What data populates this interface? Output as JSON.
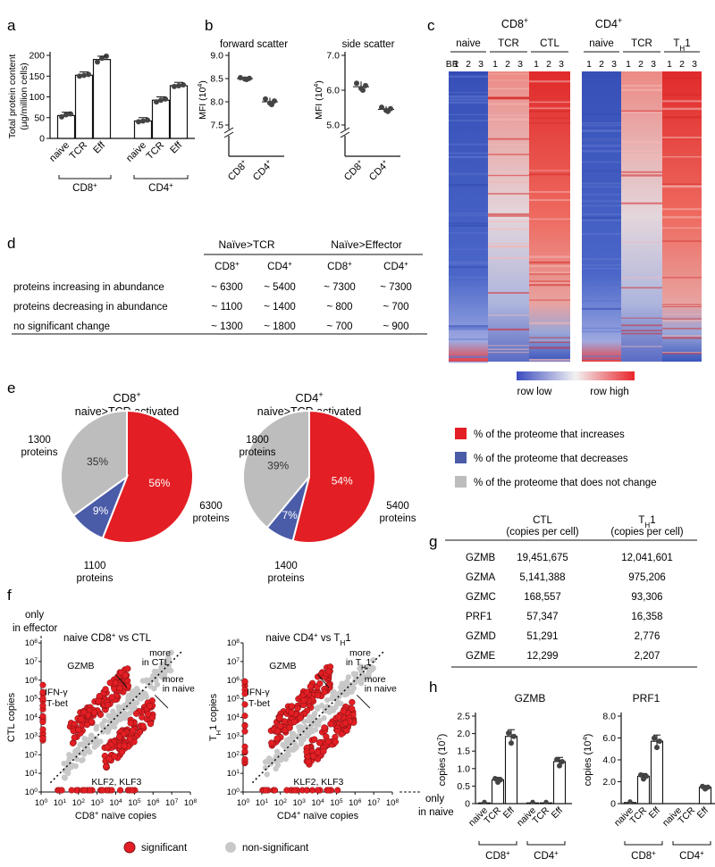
{
  "colors": {
    "red": "#e31e24",
    "blue": "#4a5ba8",
    "grey": "#bdbdbd",
    "point_grey": "#c8c8c8"
  },
  "panels": {
    "a": {
      "label": "a",
      "ylabel1": "Total protein content",
      "ylabel2": "(µg/million cells)",
      "ticks": [
        "0",
        "50",
        "100",
        "150",
        "200"
      ],
      "groups": [
        "CD8",
        "CD4"
      ],
      "sup": "+",
      "categories": [
        "naive",
        "TCR",
        "Eff"
      ]
    },
    "b": {
      "label": "b",
      "title1": "forward scatter",
      "title2": "side scatter",
      "ylabel": "MFI (10",
      "ylabel_sup": "4",
      "ylabel_close": ")",
      "ticks1": [
        "7.5",
        "8.0",
        "8.5",
        "9.0"
      ],
      "ticks2": [
        "5.0",
        "6.0",
        "7.0"
      ],
      "cats": [
        "CD8",
        "CD4"
      ],
      "sup": "+"
    },
    "c": {
      "label": "c",
      "head1": "CD8",
      "head2": "CD4",
      "sup": "+",
      "br": "BR",
      "groups1": [
        "naive",
        "TCR",
        "CTL"
      ],
      "groups2": [
        "naive",
        "TCR",
        "T"
      ],
      "th_sub": "H",
      "th_tail": "1",
      "reps": [
        "1",
        "2",
        "3"
      ],
      "legend_low": "row low",
      "legend_high": "row high"
    },
    "d": {
      "label": "d",
      "group_headers": [
        "Naïve>TCR",
        "Naïve>Effector"
      ],
      "col_headers": [
        "CD8",
        "CD4",
        "CD8",
        "CD4"
      ],
      "sup": "+",
      "rows": [
        {
          "label": "proteins increasing in abundance",
          "values": [
            "~ 6300",
            "~ 5400",
            "~ 7300",
            "~ 7300"
          ]
        },
        {
          "label": "proteins decreasing in abundance",
          "values": [
            "~ 1100",
            "~ 1400",
            "~ 800",
            "~ 700"
          ]
        },
        {
          "label": "no significant change",
          "values": [
            "~ 1300",
            "~ 1800",
            "~ 700",
            "~ 900"
          ]
        }
      ]
    },
    "e": {
      "label": "e",
      "pies": [
        {
          "title1": "CD8",
          "title2": "naive>TCR activated",
          "inc": 56,
          "dec": 9,
          "same": 35,
          "inc_label": "56%",
          "dec_label": "9%",
          "same_label": "35%",
          "n_inc": "6300",
          "n_dec": "1100",
          "n_same": "1300",
          "unit": "proteins"
        },
        {
          "title1": "CD4",
          "title2": "naive>TCR activated",
          "inc": 54,
          "dec": 7,
          "same": 39,
          "inc_label": "54%",
          "dec_label": "7%",
          "same_label": "39%",
          "n_inc": "5400",
          "n_dec": "1400",
          "n_same": "1800",
          "unit": "proteins"
        }
      ],
      "sup": "+",
      "legend": [
        "% of the proteome that increases",
        "% of the proteome that decreases",
        "% of the proteome that does not change"
      ]
    },
    "f": {
      "label": "f",
      "only_effector": "only",
      "only_effector2": "in effector",
      "only_naive": "only",
      "only_naive2": "in naive",
      "title1a": "naive CD8",
      "title1b": " vs CTL",
      "title2a": "naive CD4",
      "title2b": " vs T",
      "title2c": "1",
      "sup": "+",
      "sub": "H",
      "more_ctl1": "more",
      "more_ctl2": "in CTL",
      "more_th1": "more",
      "more_th2": "in T",
      "more_th3": "1",
      "more_naive1": "more",
      "more_naive2": "in naive",
      "gzmb": "GZMB",
      "ifng": "IFN-γ",
      "tbet": "T-bet",
      "klf": "KLF2, KLF3",
      "ylabel1": "CTL copies",
      "ylabel2a": "T",
      "ylabel2b": "1 copies",
      "xlabel1a": "CD8",
      "xlabel1b": " naïve copies",
      "xlabel2a": "CD4",
      "xlabel2b": " naïve copies",
      "exps": [
        "0",
        "1",
        "2",
        "3",
        "4",
        "5",
        "6",
        "7",
        "8"
      ],
      "base": "10",
      "legend_sig": "significant",
      "legend_non": "non-significant"
    },
    "g": {
      "label": "g",
      "col1a": "CTL",
      "col1b": "(copies per cell)",
      "col2a": "T",
      "col2b": "1",
      "col2c": "(copies per cell)",
      "sub": "H",
      "rows": [
        {
          "gene": "GZMB",
          "ctl": "19,451,675",
          "th1": "12,041,601"
        },
        {
          "gene": "GZMA",
          "ctl": "5,141,388",
          "th1": "975,206"
        },
        {
          "gene": "GZMC",
          "ctl": "168,557",
          "th1": "93,306"
        },
        {
          "gene": "PRF1",
          "ctl": "57,347",
          "th1": "16,358"
        },
        {
          "gene": "GZMD",
          "ctl": "51,291",
          "th1": "2,776"
        },
        {
          "gene": "GZME",
          "ctl": "12,299",
          "th1": "2,207"
        }
      ]
    },
    "h": {
      "label": "h",
      "gzmb_title": "GZMB",
      "prf1_title": "PRF1",
      "ylabel1a": "copies (10",
      "ylabel1b": "7",
      "ylabel_close": ")",
      "ylabel2a": "copies (10",
      "ylabel2b": "4",
      "ticks1": [
        "0",
        "0.5",
        "1.0",
        "1.5",
        "2.0",
        "2.5"
      ],
      "ticks2": [
        "0",
        "2.0",
        "4.0",
        "6.0",
        "8.0"
      ],
      "cats": [
        "naive",
        "TCR",
        "Eff",
        "naive",
        "TCR",
        "Eff"
      ],
      "groups": [
        "CD8",
        "CD4"
      ],
      "sup": "+"
    }
  },
  "chart_data": [
    {
      "type": "bar",
      "title": "Total protein content",
      "ylabel": "Total protein content (µg/million cells)",
      "categories": [
        "CD8 naive",
        "CD8 TCR",
        "CD8 Eff",
        "CD4 naive",
        "CD4 TCR",
        "CD4 Eff"
      ],
      "values": [
        55,
        152,
        190,
        42,
        92,
        127
      ],
      "ylim": [
        0,
        200
      ]
    },
    {
      "type": "scatter",
      "title": "forward scatter",
      "ylabel": "MFI (10^4)",
      "categories": [
        "CD8",
        "CD4"
      ],
      "values": [
        8.5,
        8.0
      ],
      "ylim": [
        7.5,
        9.0
      ]
    },
    {
      "type": "scatter",
      "title": "side scatter",
      "ylabel": "MFI (10^4)",
      "categories": [
        "CD8",
        "CD4"
      ],
      "values": [
        6.1,
        5.45
      ],
      "ylim": [
        5.0,
        7.0
      ]
    },
    {
      "type": "pie",
      "title": "CD8 naive>TCR activated",
      "categories": [
        "increase",
        "decrease",
        "no change"
      ],
      "values": [
        56,
        9,
        35
      ]
    },
    {
      "type": "pie",
      "title": "CD4 naive>TCR activated",
      "categories": [
        "increase",
        "decrease",
        "no change"
      ],
      "values": [
        54,
        7,
        39
      ]
    },
    {
      "type": "bar",
      "title": "GZMB",
      "ylabel": "copies (10^7)",
      "categories": [
        "CD8 naive",
        "CD8 TCR",
        "CD8 Eff",
        "CD4 naive",
        "CD4 TCR",
        "CD4 Eff"
      ],
      "values": [
        0.02,
        0.68,
        1.92,
        0.02,
        0.02,
        1.2
      ],
      "ylim": [
        0,
        2.5
      ]
    },
    {
      "type": "bar",
      "title": "PRF1",
      "ylabel": "copies (10^4)",
      "categories": [
        "CD8 naive",
        "CD8 TCR",
        "CD8 Eff",
        "CD4 naive",
        "CD4 TCR",
        "CD4 Eff"
      ],
      "values": [
        0.1,
        2.5,
        5.7,
        0,
        0,
        1.5
      ],
      "ylim": [
        0,
        8.0
      ]
    }
  ]
}
